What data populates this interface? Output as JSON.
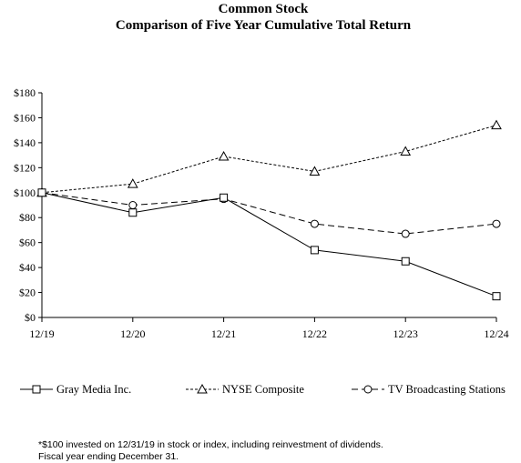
{
  "chart_data": {
    "type": "line",
    "title": "Common Stock",
    "subtitle": "Comparison of Five Year Cumulative Total Return",
    "categories": [
      "12/19",
      "12/20",
      "12/21",
      "12/22",
      "12/23",
      "12/24"
    ],
    "ylim": [
      0,
      180
    ],
    "y_ticks": [
      0,
      20,
      40,
      60,
      80,
      100,
      120,
      140,
      160,
      180
    ],
    "y_tick_labels": [
      "$0",
      "$20",
      "$40",
      "$60",
      "$80",
      "$100",
      "$120",
      "$140",
      "$160",
      "$180"
    ],
    "grid": false,
    "legend_position": "bottom",
    "series": [
      {
        "name": "Gray Media Inc.",
        "marker": "square",
        "line_style": "solid",
        "values": [
          100,
          84,
          96,
          54,
          45,
          17
        ]
      },
      {
        "name": "NYSE Composite",
        "marker": "triangle",
        "line_style": "dotted",
        "values": [
          100,
          107,
          129,
          117,
          133,
          154
        ]
      },
      {
        "name": "TV Broadcasting Stations",
        "marker": "circle",
        "line_style": "dashed",
        "values": [
          100,
          90,
          95,
          75,
          67,
          75
        ]
      }
    ],
    "footnotes": [
      "*$100 invested on 12/31/19 in stock or index, including reinvestment of dividends.",
      "Fiscal year ending December 31."
    ]
  }
}
